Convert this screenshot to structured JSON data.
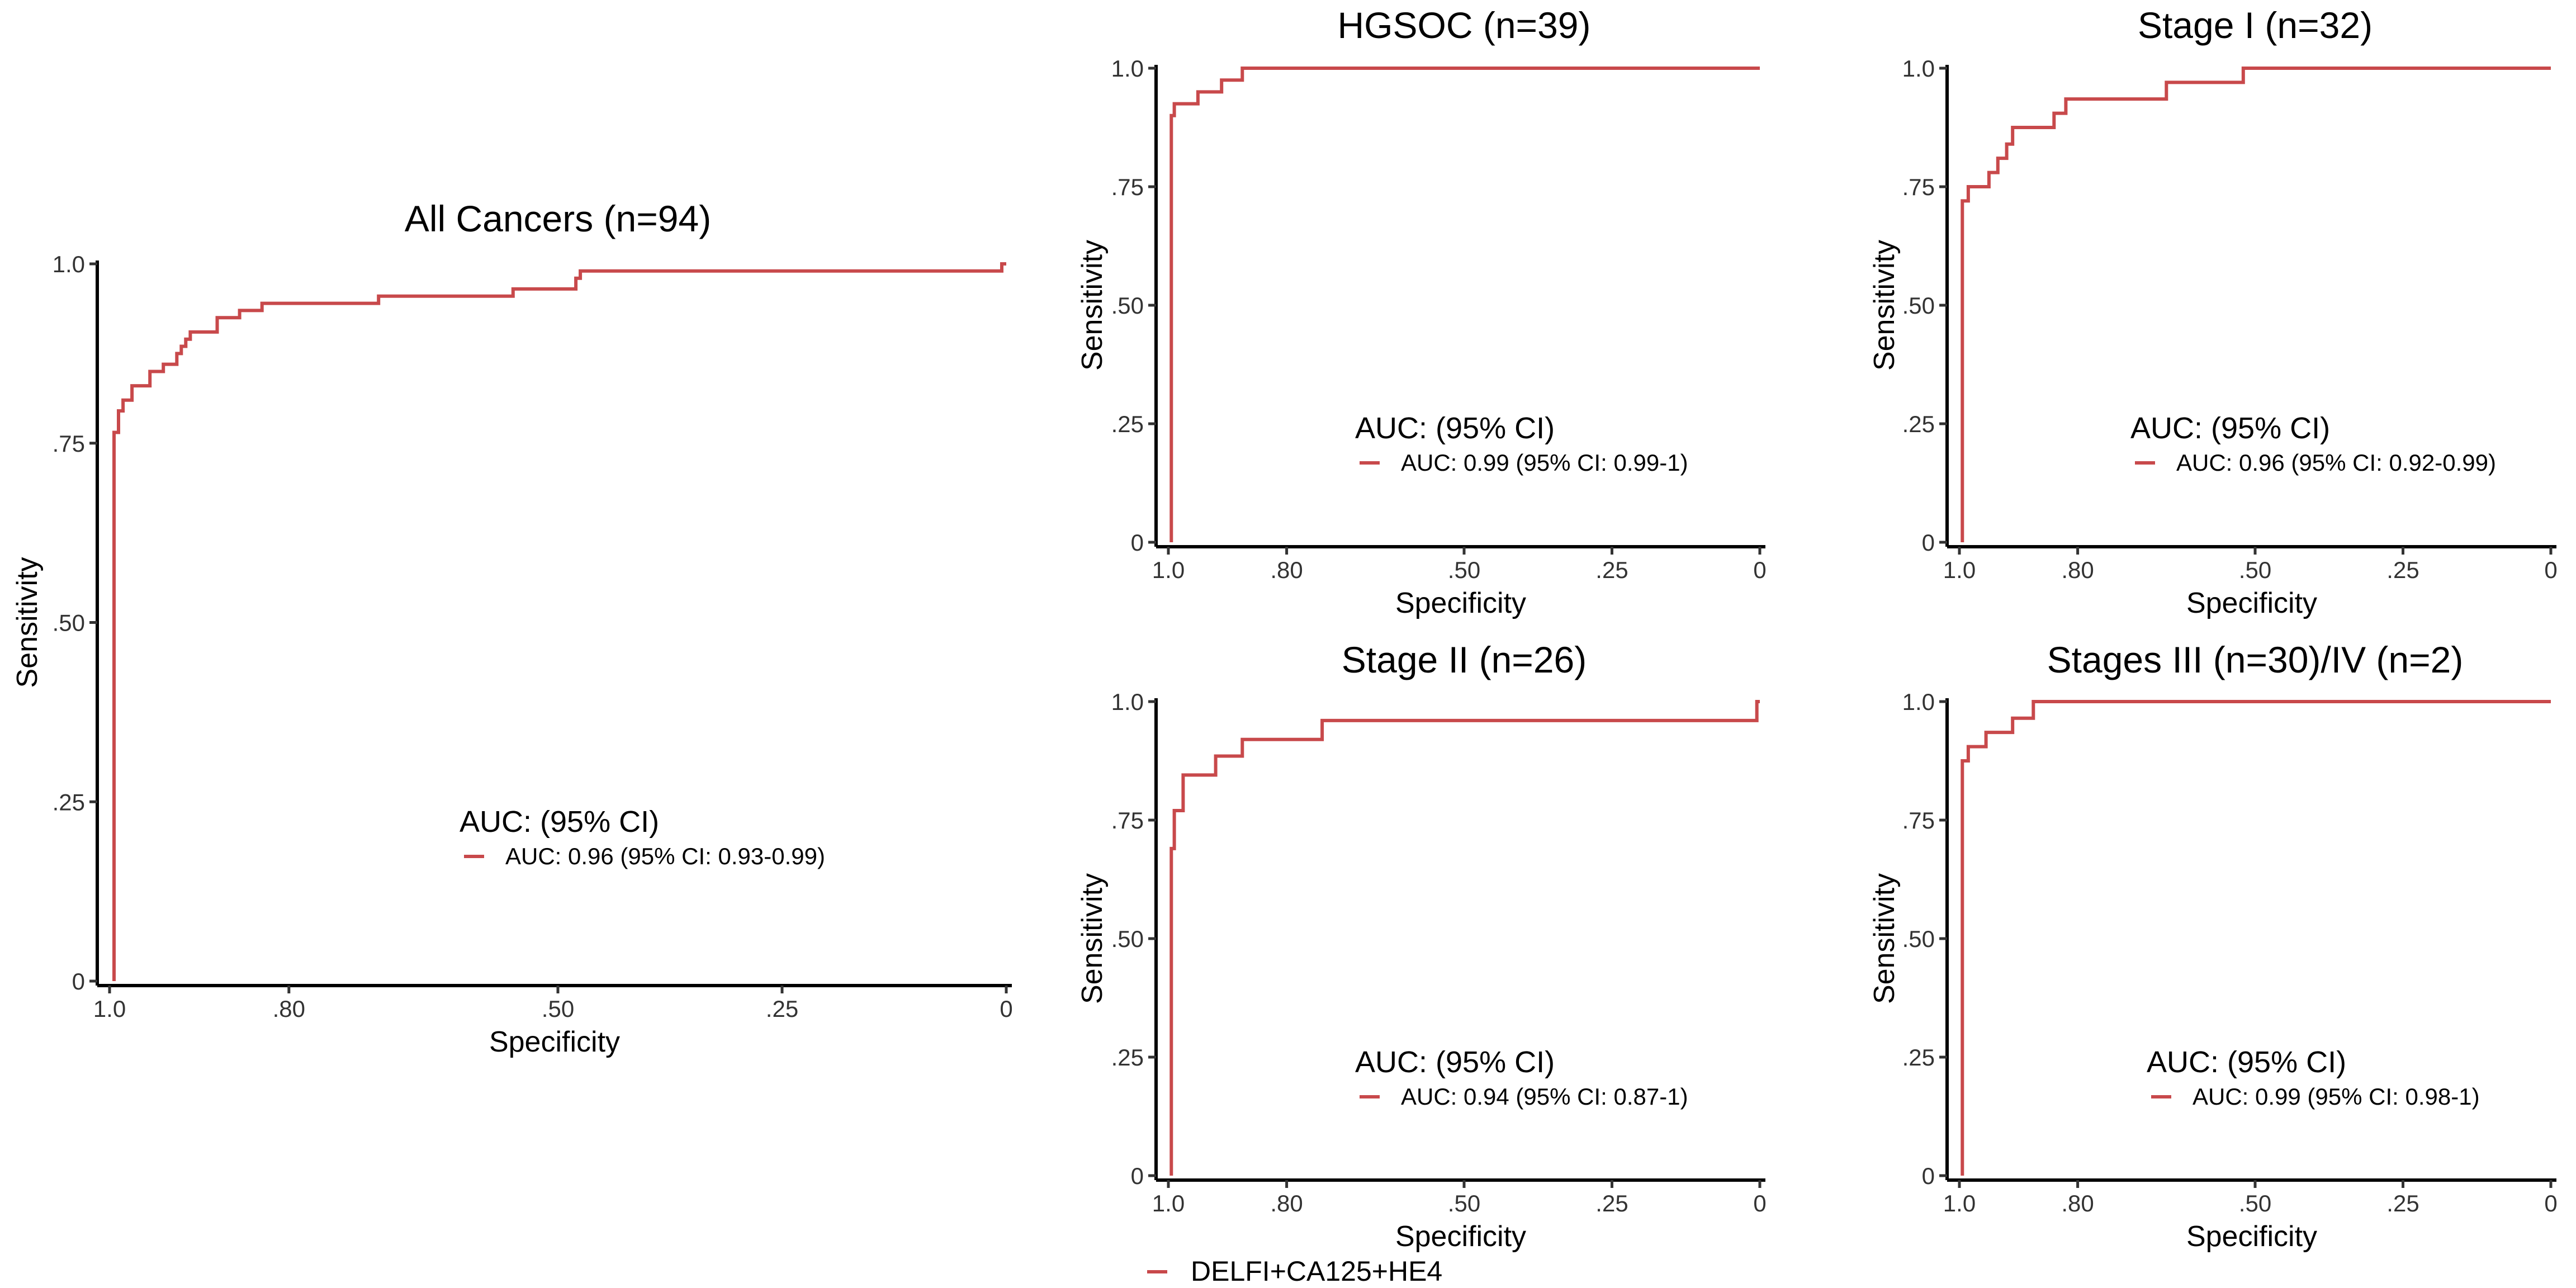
{
  "figure": {
    "legend_label": "DELFI+CA125+HE4",
    "series_color": "#C8494B"
  },
  "chart_data": [
    {
      "type": "line",
      "title": "All Cancers (n=94)",
      "xlabel": "Specificity",
      "ylabel": "Sensitivity",
      "x_reversed": true,
      "xlim": [
        1.0,
        0
      ],
      "ylim": [
        0,
        1.0
      ],
      "x_ticks": [
        1.0,
        0.8,
        0.5,
        0.25,
        0
      ],
      "x_tick_labels": [
        "1.0",
        ".80",
        ".50",
        ".25",
        "0"
      ],
      "y_ticks": [
        0,
        0.25,
        0.5,
        0.75,
        1.0
      ],
      "y_tick_labels": [
        "0",
        ".25",
        ".50",
        ".75",
        "1.0"
      ],
      "grid": false,
      "legend_title": "AUC: (95% CI)",
      "series": [
        {
          "name": "AUC: 0.96 (95% CI: 0.93-0.99)",
          "x": [
            0.995,
            0.995,
            0.99,
            0.99,
            0.985,
            0.985,
            0.975,
            0.975,
            0.955,
            0.955,
            0.94,
            0.94,
            0.925,
            0.925,
            0.92,
            0.92,
            0.915,
            0.915,
            0.91,
            0.91,
            0.88,
            0.88,
            0.855,
            0.855,
            0.83,
            0.83,
            0.7,
            0.7,
            0.55,
            0.55,
            0.48,
            0.48,
            0.475,
            0.475,
            0.005,
            0.005,
            0.0
          ],
          "y": [
            0,
            0.765,
            0.765,
            0.795,
            0.795,
            0.81,
            0.81,
            0.83,
            0.83,
            0.85,
            0.85,
            0.86,
            0.86,
            0.875,
            0.875,
            0.885,
            0.885,
            0.895,
            0.895,
            0.905,
            0.905,
            0.925,
            0.925,
            0.935,
            0.935,
            0.945,
            0.945,
            0.955,
            0.955,
            0.965,
            0.965,
            0.98,
            0.98,
            0.99,
            0.99,
            1.0,
            1.0
          ]
        }
      ]
    },
    {
      "type": "line",
      "title": "HGSOC (n=39)",
      "xlabel": "Specificity",
      "ylabel": "Sensitivity",
      "x_reversed": true,
      "xlim": [
        1.0,
        0
      ],
      "ylim": [
        0,
        1.0
      ],
      "x_ticks": [
        1.0,
        0.8,
        0.5,
        0.25,
        0
      ],
      "x_tick_labels": [
        "1.0",
        ".80",
        ".50",
        ".25",
        "0"
      ],
      "y_ticks": [
        0,
        0.25,
        0.5,
        0.75,
        1.0
      ],
      "y_tick_labels": [
        "0",
        ".25",
        ".50",
        ".75",
        "1.0"
      ],
      "grid": false,
      "legend_title": "AUC: (95% CI)",
      "series": [
        {
          "name": "AUC: 0.99 (95% CI: 0.99-1)",
          "x": [
            0.995,
            0.995,
            0.99,
            0.99,
            0.95,
            0.95,
            0.91,
            0.91,
            0.875,
            0.875,
            0.0
          ],
          "y": [
            0,
            0.9,
            0.9,
            0.925,
            0.925,
            0.95,
            0.95,
            0.975,
            0.975,
            1.0,
            1.0
          ]
        }
      ]
    },
    {
      "type": "line",
      "title": "Stage I (n=32)",
      "xlabel": "Specificity",
      "ylabel": "Sensitivity",
      "x_reversed": true,
      "xlim": [
        1.0,
        0
      ],
      "ylim": [
        0,
        1.0
      ],
      "x_ticks": [
        1.0,
        0.8,
        0.5,
        0.25,
        0
      ],
      "x_tick_labels": [
        "1.0",
        ".80",
        ".50",
        ".25",
        "0"
      ],
      "y_ticks": [
        0,
        0.25,
        0.5,
        0.75,
        1.0
      ],
      "y_tick_labels": [
        "0",
        ".25",
        ".50",
        ".75",
        "1.0"
      ],
      "grid": false,
      "legend_title": "AUC: (95% CI)",
      "series": [
        {
          "name": "AUC: 0.96 (95% CI: 0.92-0.99)",
          "x": [
            0.995,
            0.995,
            0.985,
            0.985,
            0.95,
            0.95,
            0.935,
            0.935,
            0.92,
            0.92,
            0.91,
            0.91,
            0.905,
            0.905,
            0.84,
            0.84,
            0.82,
            0.82,
            0.65,
            0.65,
            0.52,
            0.52,
            0.0
          ],
          "y": [
            0,
            0.72,
            0.72,
            0.75,
            0.75,
            0.78,
            0.78,
            0.81,
            0.81,
            0.84,
            0.84,
            0.875,
            0.875,
            0.875,
            0.875,
            0.905,
            0.905,
            0.935,
            0.935,
            0.97,
            0.97,
            1.0,
            1.0
          ]
        }
      ]
    },
    {
      "type": "line",
      "title": "Stage II (n=26)",
      "xlabel": "Specificity",
      "ylabel": "Sensitivity",
      "x_reversed": true,
      "xlim": [
        1.0,
        0
      ],
      "ylim": [
        0,
        1.0
      ],
      "x_ticks": [
        1.0,
        0.8,
        0.5,
        0.25,
        0
      ],
      "x_tick_labels": [
        "1.0",
        ".80",
        ".50",
        ".25",
        "0"
      ],
      "y_ticks": [
        0,
        0.25,
        0.5,
        0.75,
        1.0
      ],
      "y_tick_labels": [
        "0",
        ".25",
        ".50",
        ".75",
        "1.0"
      ],
      "grid": false,
      "legend_title": "AUC: (95% CI)",
      "series": [
        {
          "name": "AUC: 0.94 (95% CI: 0.87-1)",
          "x": [
            0.995,
            0.995,
            0.99,
            0.99,
            0.975,
            0.975,
            0.92,
            0.92,
            0.875,
            0.875,
            0.74,
            0.74,
            0.005,
            0.005,
            0.0
          ],
          "y": [
            0,
            0.69,
            0.69,
            0.77,
            0.77,
            0.845,
            0.845,
            0.885,
            0.885,
            0.92,
            0.92,
            0.96,
            0.96,
            1.0,
            1.0
          ]
        }
      ]
    },
    {
      "type": "line",
      "title": "Stages III (n=30)/IV (n=2)",
      "xlabel": "Specificity",
      "ylabel": "Sensitivity",
      "x_reversed": true,
      "xlim": [
        1.0,
        0
      ],
      "ylim": [
        0,
        1.0
      ],
      "x_ticks": [
        1.0,
        0.8,
        0.5,
        0.25,
        0
      ],
      "x_tick_labels": [
        "1.0",
        ".80",
        ".50",
        ".25",
        "0"
      ],
      "y_ticks": [
        0,
        0.25,
        0.5,
        0.75,
        1.0
      ],
      "y_tick_labels": [
        "0",
        ".25",
        ".50",
        ".75",
        "1.0"
      ],
      "grid": false,
      "legend_title": "AUC: (95% CI)",
      "series": [
        {
          "name": "AUC: 0.99 (95% CI: 0.98-1)",
          "x": [
            0.995,
            0.995,
            0.985,
            0.985,
            0.955,
            0.955,
            0.91,
            0.91,
            0.875,
            0.875,
            0.0
          ],
          "y": [
            0,
            0.875,
            0.875,
            0.905,
            0.905,
            0.935,
            0.935,
            0.965,
            0.965,
            1.0,
            1.0
          ]
        }
      ]
    }
  ]
}
